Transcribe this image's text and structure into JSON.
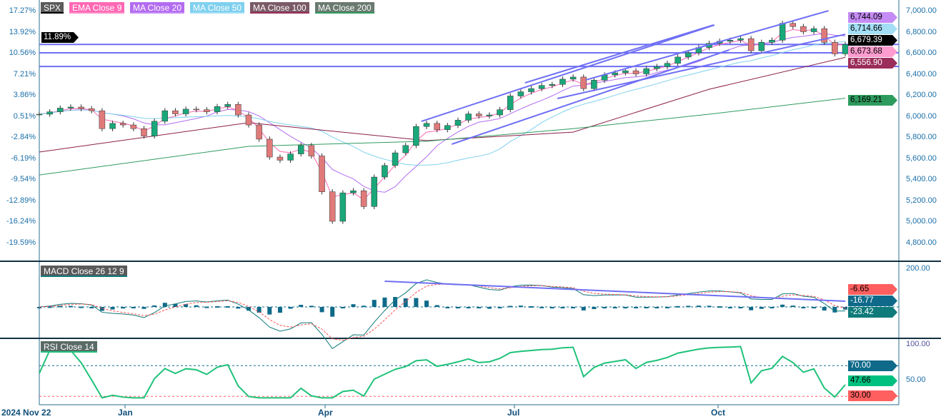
{
  "legend": [
    {
      "label": "SPX",
      "color": "#5a5a5a",
      "underline": "#000000"
    },
    {
      "label": "EMA  Close 9",
      "color": "#ff69b4",
      "underline": "#ff8cc6"
    },
    {
      "label": "MA  Close 20",
      "color": "#b36cf0",
      "underline": "#c58cf5"
    },
    {
      "label": "MA  Close 50",
      "color": "#7fd0ef",
      "underline": "#a3def5"
    },
    {
      "label": "MA  Close 100",
      "color": "#7a5a66",
      "underline": "#9b2d5a"
    },
    {
      "label": "MA  Close 200",
      "color": "#6a7a70",
      "underline": "#2e9b5e"
    }
  ],
  "macd_label": "MACD  Close 26 12 9",
  "rsi_label": "RSI  Close 14",
  "chart_data": {
    "type": "candlestick",
    "symbol": "SPX",
    "left_axis_ticks": [
      "17.27%",
      "13.92%",
      "10.56%",
      "7.21%",
      "3.86%",
      "0.51%",
      "-2.84%",
      "-6.19%",
      "-9.54%",
      "-12.89%",
      "-16.24%",
      "-19.59%"
    ],
    "right_axis_ticks": [
      "7,000.00",
      "6,800.00",
      "6,600.00",
      "6,400.00",
      "6,200.00",
      "6,000.00",
      "5,800.00",
      "5,600.00",
      "5,400.00",
      "5,200.00",
      "5,000.00",
      "4,800.00"
    ],
    "x_ticks": [
      "2024 Nov 22",
      "Jan",
      "Apr",
      "Jul",
      "Oct"
    ],
    "price_range": [
      4800,
      7000
    ],
    "closes": [
      6017,
      6040,
      6075,
      6085,
      6070,
      6050,
      5880,
      5930,
      5915,
      5880,
      5810,
      5950,
      6050,
      6020,
      6065,
      6060,
      6040,
      6090,
      6110,
      6010,
      5915,
      5780,
      5610,
      5580,
      5640,
      5720,
      5620,
      5280,
      5000,
      5270,
      5290,
      5140,
      5420,
      5530,
      5650,
      5720,
      5900,
      5930,
      5870,
      5910,
      5960,
      6020,
      6000,
      6010,
      6060,
      6190,
      6230,
      6260,
      6290,
      6300,
      6350,
      6370,
      6260,
      6340,
      6390,
      6410,
      6430,
      6400,
      6450,
      6470,
      6500,
      6560,
      6600,
      6650,
      6690,
      6710,
      6720,
      6735,
      6620,
      6700,
      6720,
      6880,
      6850,
      6800,
      6830,
      6700,
      6590,
      6679.39
    ],
    "ma100": [
      [
        0,
        5658
      ],
      [
        20,
        5936
      ],
      [
        37,
        5766
      ],
      [
        51,
        5847
      ],
      [
        64,
        6254
      ],
      [
        77,
        6557
      ]
    ],
    "ma200": [
      [
        0,
        5440
      ],
      [
        20,
        5712
      ],
      [
        37,
        5760
      ],
      [
        51,
        5880
      ],
      [
        64,
        6017
      ],
      [
        77,
        6169
      ]
    ],
    "trendlines": [
      [
        [
          36.5,
          5949
        ],
        [
          64.5,
          6864
        ]
      ],
      [
        [
          46.4,
          6315
        ],
        [
          64.4,
          6864
        ]
      ],
      [
        [
          39.4,
          5732
        ],
        [
          65.9,
          6627
        ]
      ],
      [
        [
          49.5,
          6166
        ],
        [
          77,
          6776
        ]
      ],
      [
        [
          52.2,
          6342
        ],
        [
          75.4,
          7000
        ]
      ]
    ],
    "hlines": [
      6679.39,
      6600,
      6470
    ],
    "current_pct": "11.89%",
    "price_labels": [
      {
        "text": "6,744.09",
        "bg": "#c58cf5",
        "fg": "#000"
      },
      {
        "text": "6,714.66",
        "bg": "#a3def5",
        "fg": "#000"
      },
      {
        "text": "6,679.39",
        "bg": "#000000",
        "fg": "#fff"
      },
      {
        "text": "6,673.68",
        "bg": "#ff9ccf",
        "fg": "#000"
      },
      {
        "text": "6,556.90",
        "bg": "#9b2d5a",
        "fg": "#fff"
      },
      {
        "text": "6,169.21",
        "bg": "#2e9b5e",
        "fg": "#000"
      }
    ],
    "macd": {
      "axis_top": "200.00",
      "values": [
        {
          "text": "-6.65",
          "bg": "#ff5f5f",
          "fg": "#000"
        },
        {
          "text": "-16.77",
          "bg": "#0f6a8a",
          "fg": "#fff"
        },
        {
          "text": "-23.42",
          "bg": "#0f7a7a",
          "fg": "#fff"
        }
      ]
    },
    "rsi": {
      "axis_top": "100.00",
      "axis_mid": "50.00",
      "overbought": "70.00",
      "oversold": "30.00",
      "current": "47.66",
      "colors": {
        "line": "#1fc27a",
        "ob": "#0f6a8a",
        "os": "#ff5f5f"
      }
    },
    "colors": {
      "up": "#1aa87a",
      "down": "#e07a7a",
      "trend": "#6f6ff5",
      "ema9": "#ff69b4",
      "ma20": "#b36cf0",
      "ma50": "#7fd0ef",
      "ma100": "#8b1e4a",
      "ma200": "#2e9b5e"
    }
  }
}
